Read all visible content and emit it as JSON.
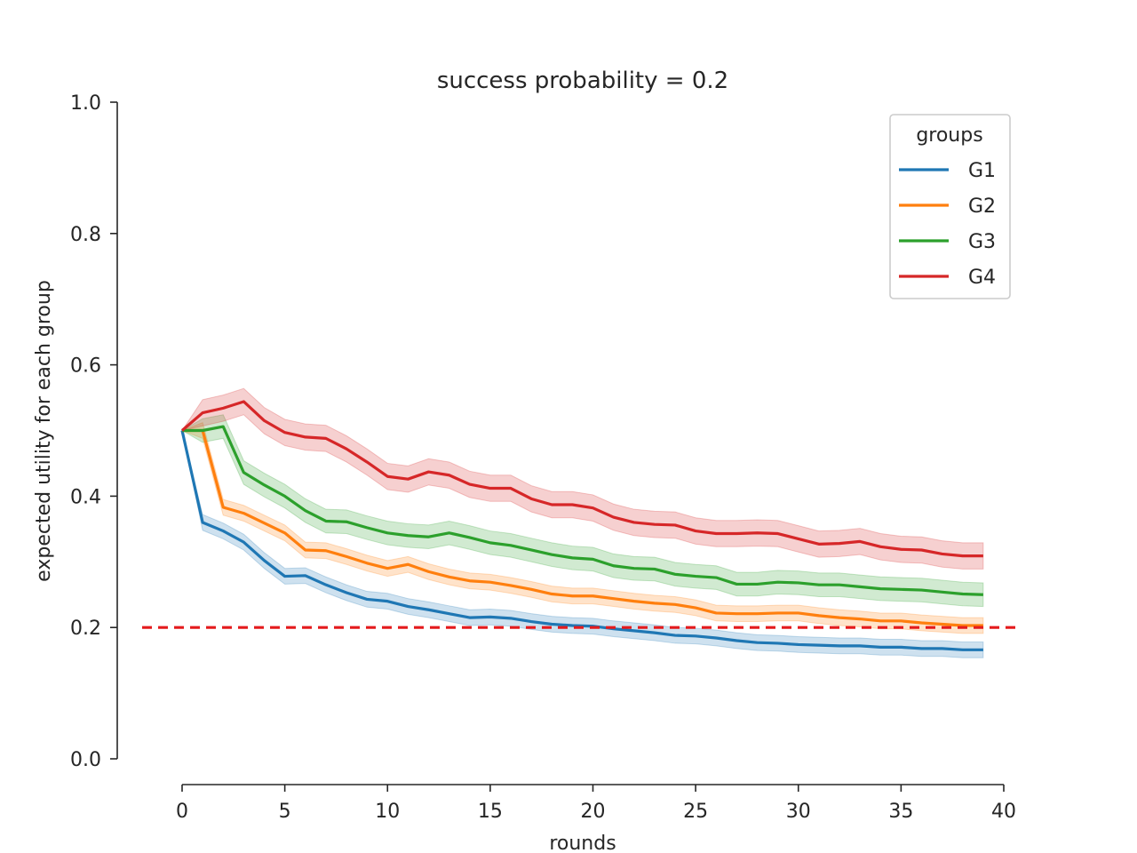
{
  "chart_data": {
    "type": "line",
    "title": "success probability = 0.2",
    "xlabel": "rounds",
    "ylabel": "expected utility for each group",
    "xlim": [
      -3.2,
      40
    ],
    "ylim": [
      0.0,
      1.0
    ],
    "xticks": [
      0,
      5,
      10,
      15,
      20,
      25,
      30,
      35,
      40
    ],
    "yticks": [
      0.0,
      0.2,
      0.4,
      0.6,
      0.8,
      1.0
    ],
    "xtick_labels": [
      "0",
      "5",
      "10",
      "15",
      "20",
      "25",
      "30",
      "35",
      "40"
    ],
    "ytick_labels": [
      "0.0",
      "0.2",
      "0.4",
      "0.6",
      "0.8",
      "1.0"
    ],
    "grid": false,
    "legend": {
      "title": "groups",
      "placement": "top-right"
    },
    "reference_line": {
      "y": 0.2,
      "color": "#e41a1c",
      "style": "dashed"
    },
    "x": [
      0,
      1,
      2,
      3,
      4,
      5,
      6,
      7,
      8,
      9,
      10,
      11,
      12,
      13,
      14,
      15,
      16,
      17,
      18,
      19,
      20,
      21,
      22,
      23,
      24,
      25,
      26,
      27,
      28,
      29,
      30,
      31,
      32,
      33,
      34,
      35,
      36,
      37,
      38,
      39
    ],
    "series": [
      {
        "name": "G1",
        "color": "#1f77b4",
        "values": [
          0.5,
          0.36,
          0.347,
          0.33,
          0.302,
          0.278,
          0.279,
          0.265,
          0.253,
          0.243,
          0.24,
          0.232,
          0.227,
          0.221,
          0.215,
          0.216,
          0.214,
          0.209,
          0.205,
          0.203,
          0.202,
          0.198,
          0.195,
          0.192,
          0.188,
          0.187,
          0.184,
          0.18,
          0.177,
          0.176,
          0.174,
          0.173,
          0.172,
          0.172,
          0.17,
          0.17,
          0.168,
          0.168,
          0.166,
          0.166
        ],
        "band": 0.012
      },
      {
        "name": "G2",
        "color": "#ff7f0e",
        "values": [
          0.5,
          0.5,
          0.383,
          0.374,
          0.359,
          0.344,
          0.318,
          0.317,
          0.308,
          0.298,
          0.29,
          0.296,
          0.285,
          0.277,
          0.271,
          0.269,
          0.264,
          0.258,
          0.251,
          0.248,
          0.248,
          0.244,
          0.24,
          0.237,
          0.235,
          0.23,
          0.222,
          0.221,
          0.221,
          0.222,
          0.222,
          0.218,
          0.215,
          0.213,
          0.21,
          0.21,
          0.207,
          0.205,
          0.203,
          0.203
        ],
        "band": 0.012
      },
      {
        "name": "G3",
        "color": "#2ca02c",
        "values": [
          0.5,
          0.5,
          0.506,
          0.436,
          0.417,
          0.4,
          0.378,
          0.362,
          0.361,
          0.352,
          0.344,
          0.34,
          0.338,
          0.344,
          0.337,
          0.329,
          0.325,
          0.318,
          0.311,
          0.306,
          0.304,
          0.294,
          0.29,
          0.289,
          0.281,
          0.278,
          0.276,
          0.266,
          0.266,
          0.269,
          0.268,
          0.265,
          0.265,
          0.262,
          0.259,
          0.258,
          0.257,
          0.254,
          0.251,
          0.25
        ],
        "band": 0.018
      },
      {
        "name": "G4",
        "color": "#d62728",
        "values": [
          0.5,
          0.527,
          0.534,
          0.544,
          0.515,
          0.497,
          0.49,
          0.488,
          0.472,
          0.452,
          0.43,
          0.426,
          0.437,
          0.432,
          0.418,
          0.412,
          0.412,
          0.396,
          0.387,
          0.387,
          0.382,
          0.368,
          0.36,
          0.357,
          0.356,
          0.347,
          0.343,
          0.343,
          0.344,
          0.343,
          0.335,
          0.327,
          0.328,
          0.331,
          0.323,
          0.319,
          0.318,
          0.312,
          0.309,
          0.309
        ],
        "band": 0.02
      }
    ]
  }
}
